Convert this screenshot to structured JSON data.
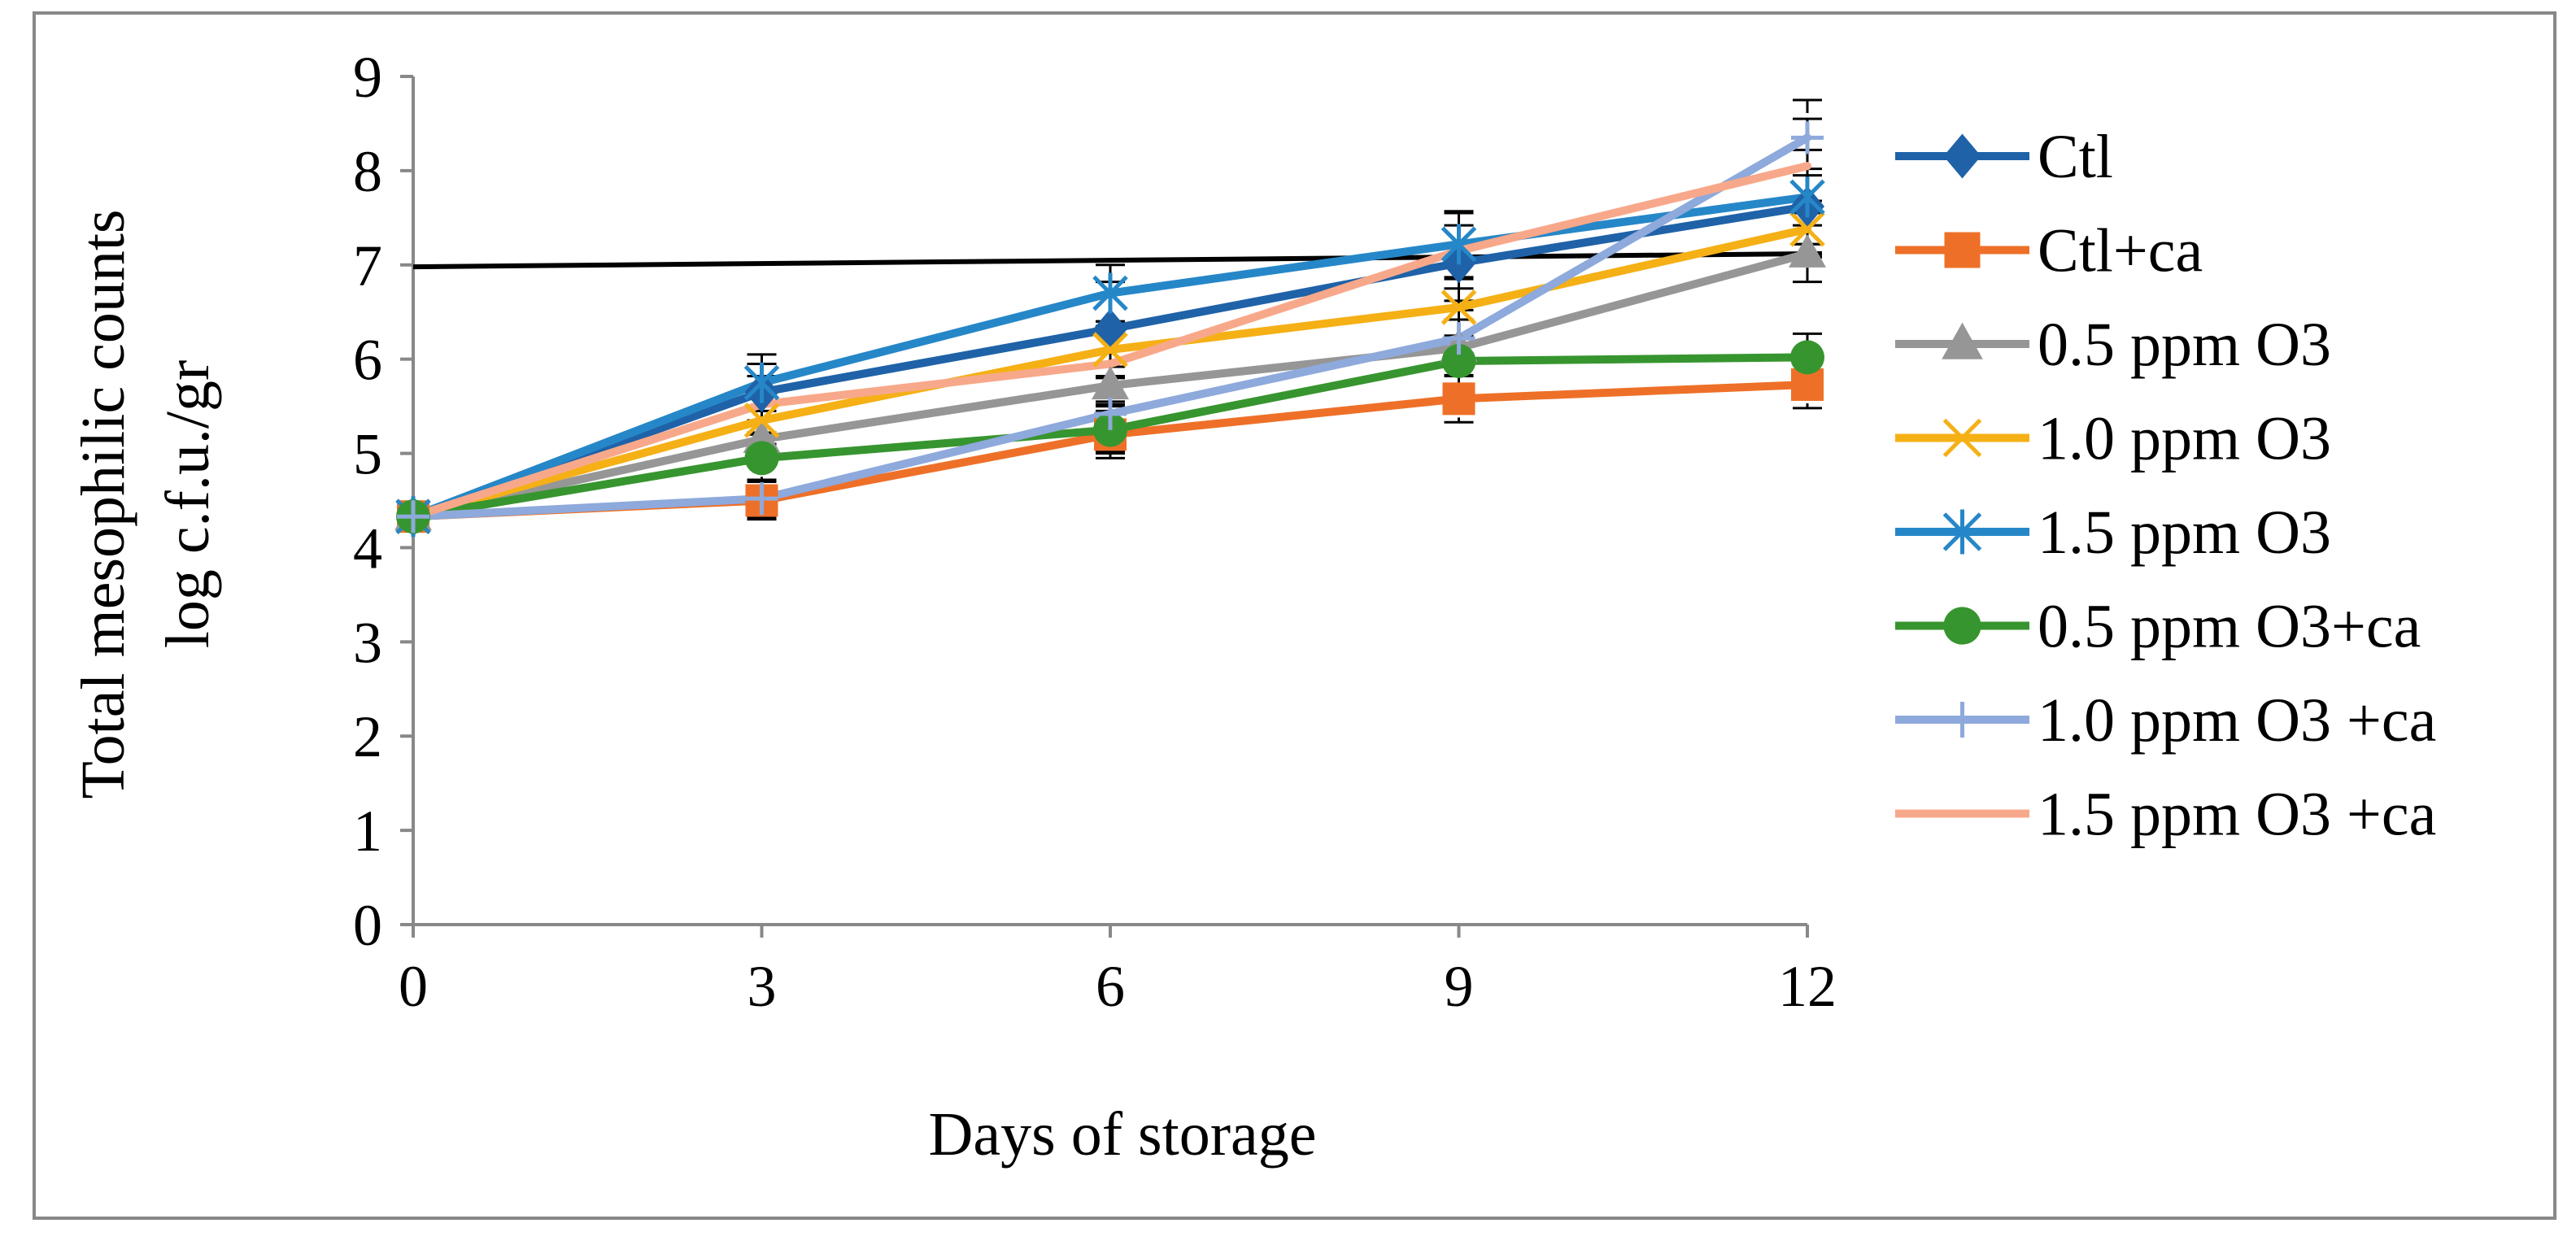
{
  "chart_data": {
    "type": "line",
    "xlabel": "Days of storage",
    "ylabel": [
      "Total mesophilic counts",
      "log c.f.u./gr"
    ],
    "x": [
      0,
      3,
      6,
      9,
      12
    ],
    "xlim": [
      0,
      12
    ],
    "ylim": [
      0,
      9
    ],
    "x_ticks": [
      "0",
      "3",
      "6",
      "9",
      "12"
    ],
    "y_ticks": [
      "0",
      "1",
      "2",
      "3",
      "4",
      "5",
      "6",
      "7",
      "8",
      "9"
    ],
    "grid": false,
    "legend_position": "right",
    "reference_line": {
      "x": [
        0,
        12
      ],
      "y": [
        6.98,
        7.12
      ],
      "color": "#000000"
    },
    "series": [
      {
        "name": "Ctl",
        "color": "#1f62a8",
        "marker": "diamond",
        "values": [
          4.33,
          5.65,
          6.32,
          7.02,
          7.62
        ],
        "errors": [
          0.1,
          0.3,
          0.5,
          0.4,
          0.4
        ]
      },
      {
        "name": "Ctl+ca",
        "color": "#ee7028",
        "marker": "square",
        "values": [
          4.33,
          4.5,
          5.2,
          5.58,
          5.73
        ],
        "errors": [
          0.1,
          0.2,
          0.25,
          0.25,
          0.25
        ]
      },
      {
        "name": "0.5 ppm O3",
        "color": "#969696",
        "marker": "triangle",
        "values": [
          4.33,
          5.15,
          5.72,
          6.12,
          7.12
        ],
        "errors": [
          0.1,
          0.2,
          0.2,
          0.3,
          0.3
        ]
      },
      {
        "name": "1.0 ppm O3",
        "color": "#f5b016",
        "marker": "x",
        "values": [
          4.33,
          5.35,
          6.1,
          6.55,
          7.38
        ],
        "errors": [
          0.1,
          0.25,
          0.3,
          0.3,
          0.3
        ]
      },
      {
        "name": "1.5 ppm O3",
        "color": "#2687c8",
        "marker": "star",
        "values": [
          4.33,
          5.75,
          6.7,
          7.22,
          7.72
        ],
        "errors": [
          0.1,
          0.3,
          0.3,
          0.35,
          0.5
        ]
      },
      {
        "name": "0.5 ppm O3+ca",
        "color": "#37952f",
        "marker": "circle",
        "values": [
          4.33,
          4.95,
          5.25,
          5.98,
          6.02
        ],
        "errors": [
          0.1,
          0.25,
          0.25,
          0.25,
          0.25
        ]
      },
      {
        "name": "1.0 ppm O3 +ca",
        "color": "#8ea9db",
        "marker": "plus",
        "values": [
          4.33,
          4.52,
          5.42,
          6.22,
          8.35
        ],
        "errors": [
          0.1,
          0.2,
          0.4,
          0.3,
          0.4
        ]
      },
      {
        "name": "1.5 ppm O3 +ca",
        "color": "#f8a88a",
        "marker": "none",
        "values": [
          4.33,
          5.52,
          5.95,
          7.15,
          8.05
        ],
        "errors": [
          0.1,
          0.3,
          0.4,
          0.4,
          0.5
        ]
      }
    ]
  }
}
